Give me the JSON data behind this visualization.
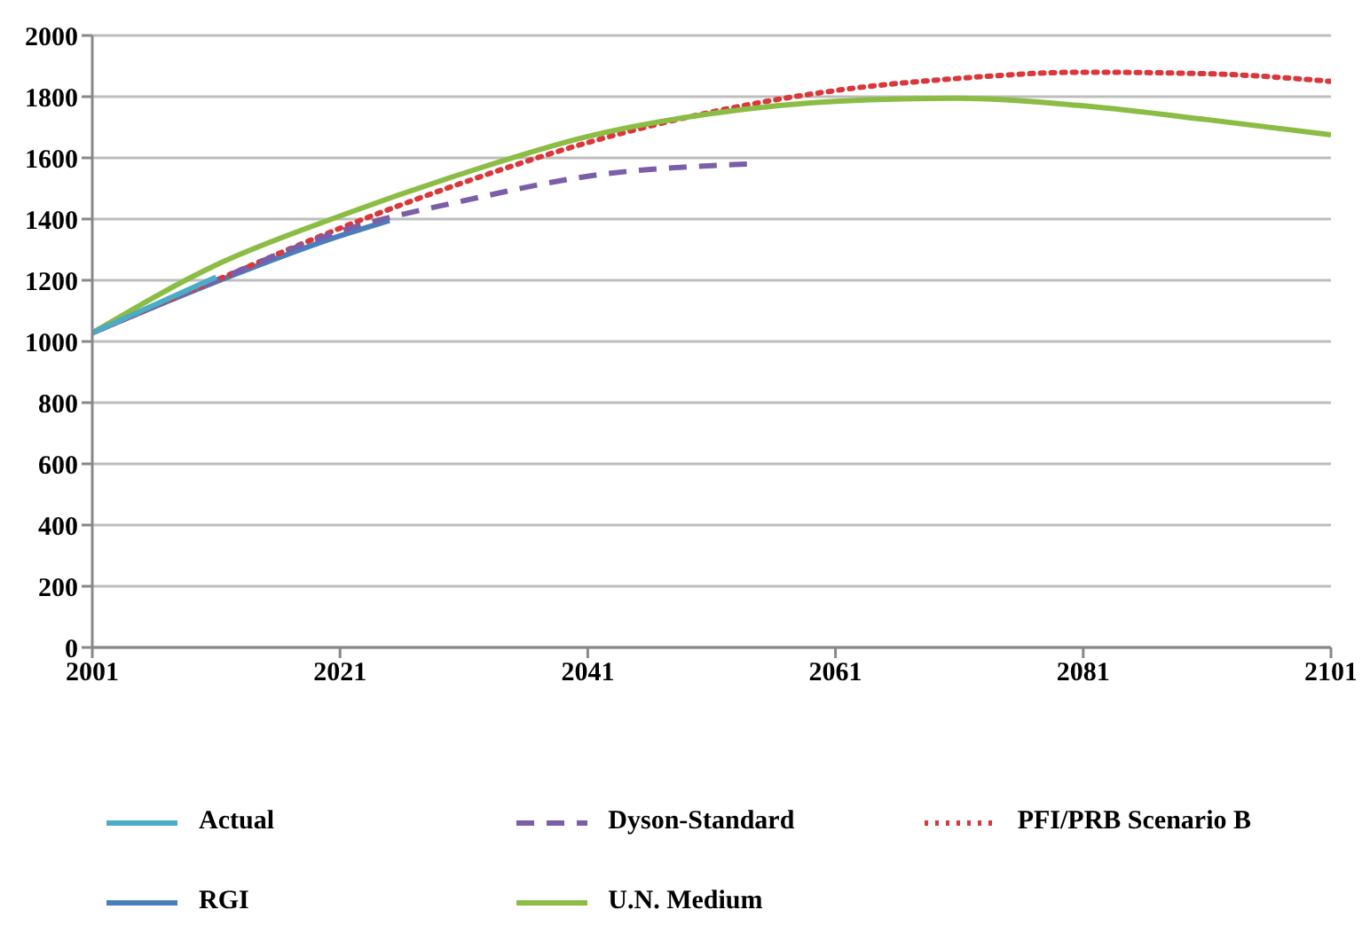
{
  "chart_data": {
    "type": "line",
    "x": [
      2001,
      2011,
      2021,
      2031,
      2041,
      2051,
      2061,
      2071,
      2081,
      2091,
      2101
    ],
    "xlim": [
      2001,
      2101
    ],
    "xticks": [
      2001,
      2021,
      2041,
      2061,
      2081,
      2101
    ],
    "ylim": [
      0,
      2000
    ],
    "yticks": [
      0,
      200,
      400,
      600,
      800,
      1000,
      1200,
      1400,
      1600,
      1800,
      2000
    ],
    "grid": "y",
    "legend": "bottom",
    "marker": "none",
    "series": [
      {
        "name": "RGI",
        "color": "#4a7ebb",
        "line_style": "solid",
        "x": [
          2001,
          2011,
          2021,
          2025
        ],
        "values": [
          1028,
          1195,
          1345,
          1395
        ]
      },
      {
        "name": "PFI/PRB Scenario B",
        "color": "#d9373a",
        "line_style": "dotted",
        "values": [
          1028,
          1200,
          1370,
          1520,
          1650,
          1750,
          1820,
          1860,
          1880,
          1875,
          1850
        ]
      },
      {
        "name": "U.N. Medium",
        "color": "#8bbd45",
        "line_style": "solid",
        "values": [
          1028,
          1250,
          1410,
          1550,
          1670,
          1745,
          1785,
          1795,
          1770,
          1725,
          1675
        ]
      },
      {
        "name": "Dyson-Standard",
        "color": "#7b5ea7",
        "line_style": "dashed",
        "x": [
          2001,
          2011,
          2021,
          2031,
          2041,
          2054
        ],
        "values": [
          1028,
          1200,
          1360,
          1460,
          1540,
          1580
        ]
      },
      {
        "name": "Actual",
        "color": "#4bacc6",
        "line_style": "solid",
        "x": [
          2001,
          2011
        ],
        "values": [
          1028,
          1210
        ]
      }
    ]
  }
}
